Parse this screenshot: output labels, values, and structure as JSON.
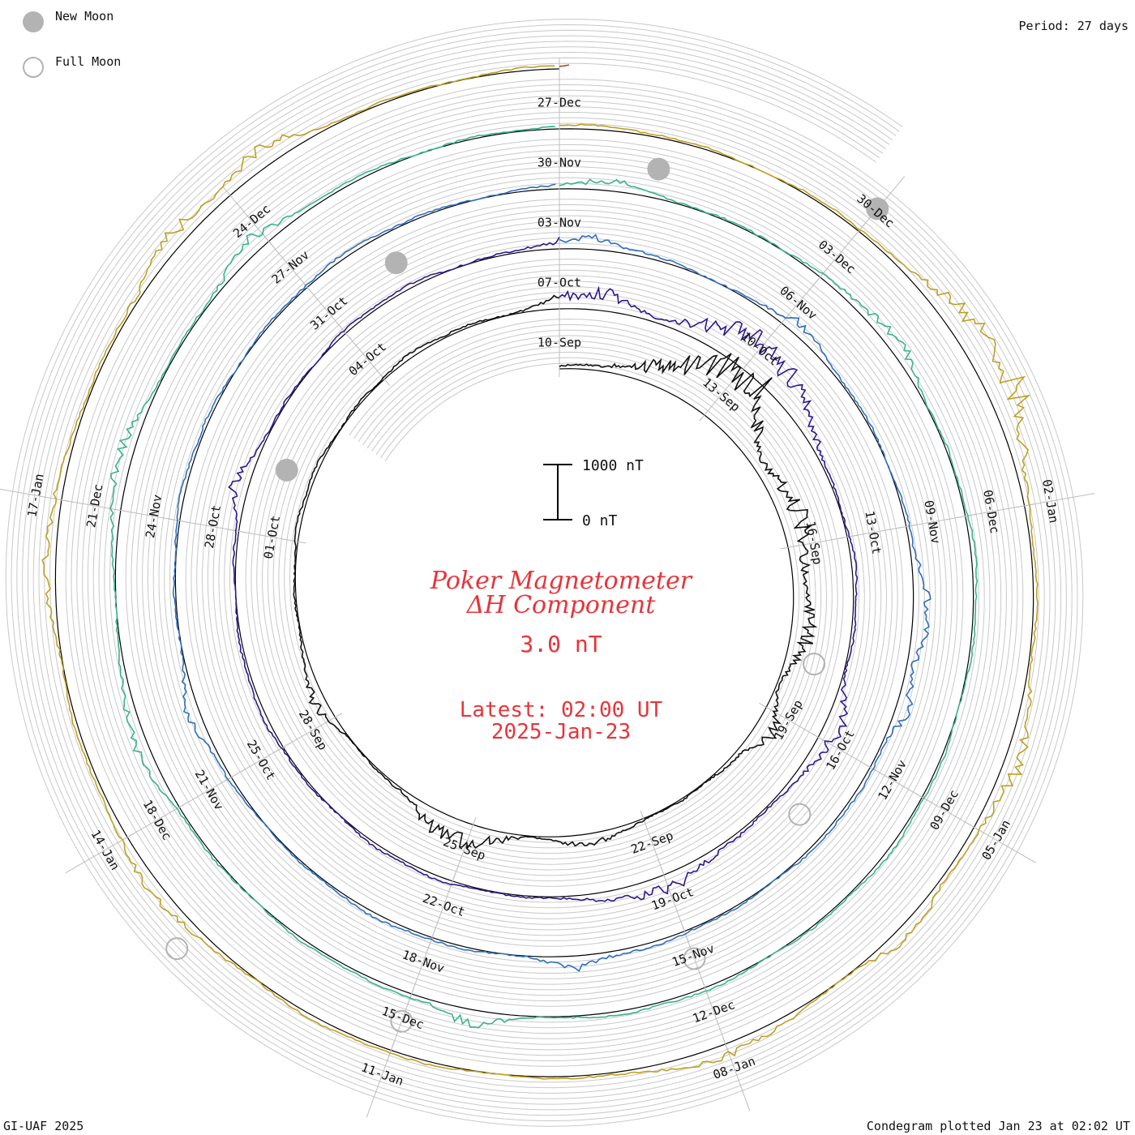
{
  "header": {
    "new_moon_label": "New Moon",
    "full_moon_label": "Full Moon",
    "period": "Period: 27 days"
  },
  "footer": {
    "left": "GI-UAF 2025",
    "right": "Condegram plotted Jan 23 at 02:02 UT"
  },
  "center": {
    "title_line1": "Poker Magnetometer",
    "title_line2": "ΔH Component",
    "value": "3.0 nT",
    "latest_line1": "Latest: 02:00 UT",
    "latest_line2": "2025-Jan-23",
    "scale_top": "1000 nT",
    "scale_bottom": "0 nT"
  },
  "colors": {
    "title": "#e8343a",
    "grid": "#c8c8c8",
    "baseline": "#000000",
    "new_moon": "#b3b3b3",
    "full_moon_edge": "#b3b3b3"
  },
  "chart_data": {
    "type": "line",
    "title": "Poker Magnetometer ΔH Component",
    "plot_kind": "condegram (spiral, 27-day period)",
    "period_days": 27,
    "units": "nT",
    "scale_bar_nT": [
      0,
      1000
    ],
    "start_date": "2024-09-10",
    "end_date": "2025-01-23",
    "rotations": [
      {
        "color": "#111111",
        "labels": [
          "10-Sep",
          "13-Sep",
          "16-Sep",
          "19-Sep",
          "22-Sep",
          "25-Sep",
          "28-Sep",
          "01-Oct",
          "04-Oct"
        ]
      },
      {
        "color": "#2a1a8c",
        "labels": [
          "07-Oct",
          "10-Oct",
          "13-Oct",
          "16-Oct",
          "19-Oct",
          "22-Oct",
          "25-Oct",
          "28-Oct",
          "31-Oct"
        ]
      },
      {
        "color": "#2f6fbf",
        "labels": [
          "03-Nov",
          "06-Nov",
          "09-Nov",
          "12-Nov",
          "15-Nov",
          "18-Nov",
          "21-Nov",
          "24-Nov",
          "27-Nov"
        ]
      },
      {
        "color": "#38b48a",
        "labels": [
          "30-Nov",
          "03-Dec",
          "06-Dec",
          "09-Dec",
          "12-Dec",
          "15-Dec",
          "18-Dec",
          "21-Dec",
          "24-Dec"
        ]
      },
      {
        "color": "#c0a020",
        "labels": [
          "27-Dec",
          "30-Dec",
          "02-Jan",
          "05-Jan",
          "08-Jan",
          "11-Jan",
          "14-Jan",
          "17-Jan"
        ]
      },
      {
        "color": "#c0401a",
        "labels": []
      }
    ],
    "date_ticks": [
      {
        "label": "10-Sep",
        "day": 0
      },
      {
        "label": "13-Sep",
        "day": 3
      },
      {
        "label": "16-Sep",
        "day": 6
      },
      {
        "label": "19-Sep",
        "day": 9
      },
      {
        "label": "22-Sep",
        "day": 12
      },
      {
        "label": "25-Sep",
        "day": 15
      },
      {
        "label": "28-Sep",
        "day": 18
      },
      {
        "label": "01-Oct",
        "day": 21
      },
      {
        "label": "04-Oct",
        "day": 24
      },
      {
        "label": "07-Oct",
        "day": 27
      },
      {
        "label": "10-Oct",
        "day": 30
      },
      {
        "label": "13-Oct",
        "day": 33
      },
      {
        "label": "16-Oct",
        "day": 36
      },
      {
        "label": "19-Oct",
        "day": 39
      },
      {
        "label": "22-Oct",
        "day": 42
      },
      {
        "label": "25-Oct",
        "day": 45
      },
      {
        "label": "28-Oct",
        "day": 48
      },
      {
        "label": "31-Oct",
        "day": 51
      },
      {
        "label": "03-Nov",
        "day": 54
      },
      {
        "label": "06-Nov",
        "day": 57
      },
      {
        "label": "09-Nov",
        "day": 60
      },
      {
        "label": "12-Nov",
        "day": 63
      },
      {
        "label": "15-Nov",
        "day": 66
      },
      {
        "label": "18-Nov",
        "day": 69
      },
      {
        "label": "21-Nov",
        "day": 72
      },
      {
        "label": "24-Nov",
        "day": 75
      },
      {
        "label": "27-Nov",
        "day": 78
      },
      {
        "label": "30-Nov",
        "day": 81
      },
      {
        "label": "03-Dec",
        "day": 84
      },
      {
        "label": "06-Dec",
        "day": 87
      },
      {
        "label": "09-Dec",
        "day": 90
      },
      {
        "label": "12-Dec",
        "day": 93
      },
      {
        "label": "15-Dec",
        "day": 96
      },
      {
        "label": "18-Dec",
        "day": 99
      },
      {
        "label": "21-Dec",
        "day": 102
      },
      {
        "label": "24-Dec",
        "day": 105
      },
      {
        "label": "27-Dec",
        "day": 108
      },
      {
        "label": "30-Dec",
        "day": 111
      },
      {
        "label": "02-Jan",
        "day": 114
      },
      {
        "label": "05-Jan",
        "day": 117
      },
      {
        "label": "08-Jan",
        "day": 120
      },
      {
        "label": "11-Jan",
        "day": 123
      },
      {
        "label": "14-Jan",
        "day": 126
      },
      {
        "label": "17-Jan",
        "day": 129
      }
    ],
    "new_moons": [
      "2024-10-02",
      "2024-11-01",
      "2024-12-01",
      "2024-12-30"
    ],
    "full_moons": [
      "2024-09-18",
      "2024-10-17",
      "2024-11-15",
      "2024-12-15",
      "2025-01-13"
    ],
    "activity_events": [
      {
        "day": 2.5,
        "peak_nT": 500,
        "width_days": 1.5
      },
      {
        "day": 3.2,
        "peak_nT": 700,
        "width_days": 1.0
      },
      {
        "day": 5.5,
        "peak_nT": 350,
        "width_days": 1.5
      },
      {
        "day": 7.5,
        "peak_nT": 280,
        "width_days": 1.0
      },
      {
        "day": 9.3,
        "peak_nT": 260,
        "width_days": 0.6
      },
      {
        "day": 15.2,
        "peak_nT": 330,
        "width_days": 1.0
      },
      {
        "day": 13.0,
        "peak_nT": 150,
        "width_days": 0.6
      },
      {
        "day": 18.4,
        "peak_nT": 160,
        "width_days": 0.6
      },
      {
        "day": 27.5,
        "peak_nT": 250,
        "width_days": 1.0
      },
      {
        "day": 29.6,
        "peak_nT": 400,
        "width_days": 1.0
      },
      {
        "day": 30.6,
        "peak_nT": 380,
        "width_days": 1.2
      },
      {
        "day": 35.8,
        "peak_nT": 230,
        "width_days": 0.8
      },
      {
        "day": 39.0,
        "peak_nT": 200,
        "width_days": 1.2
      },
      {
        "day": 48.6,
        "peak_nT": 200,
        "width_days": 0.5
      },
      {
        "day": 54.3,
        "peak_nT": 150,
        "width_days": 0.8
      },
      {
        "day": 57.2,
        "peak_nT": 160,
        "width_days": 0.5
      },
      {
        "day": 61.1,
        "peak_nT": 220,
        "width_days": 0.8
      },
      {
        "day": 62.2,
        "peak_nT": 180,
        "width_days": 0.5
      },
      {
        "day": 67.3,
        "peak_nT": 150,
        "width_days": 0.5
      },
      {
        "day": 72.8,
        "peak_nT": 160,
        "width_days": 0.5
      },
      {
        "day": 81.5,
        "peak_nT": 130,
        "width_days": 0.5
      },
      {
        "day": 85.0,
        "peak_nT": 150,
        "width_days": 0.8
      },
      {
        "day": 95.4,
        "peak_nT": 200,
        "width_days": 0.5
      },
      {
        "day": 99.8,
        "peak_nT": 150,
        "width_days": 0.8
      },
      {
        "day": 102.4,
        "peak_nT": 170,
        "width_days": 0.8
      },
      {
        "day": 104.8,
        "peak_nT": 200,
        "width_days": 0.6
      },
      {
        "day": 112.2,
        "peak_nT": 300,
        "width_days": 0.6
      },
      {
        "day": 113.0,
        "peak_nT": 500,
        "width_days": 0.8
      },
      {
        "day": 116.3,
        "peak_nT": 250,
        "width_days": 0.8
      },
      {
        "day": 118.1,
        "peak_nT": 200,
        "width_days": 0.5
      },
      {
        "day": 120.0,
        "peak_nT": 150,
        "width_days": 0.8
      },
      {
        "day": 125.4,
        "peak_nT": 180,
        "width_days": 0.8
      },
      {
        "day": 128.5,
        "peak_nT": 150,
        "width_days": 0.8
      },
      {
        "day": 131.4,
        "peak_nT": 200,
        "width_days": 0.8
      },
      {
        "day": 132.4,
        "peak_nT": 250,
        "width_days": 0.5
      }
    ],
    "grid": true
  }
}
